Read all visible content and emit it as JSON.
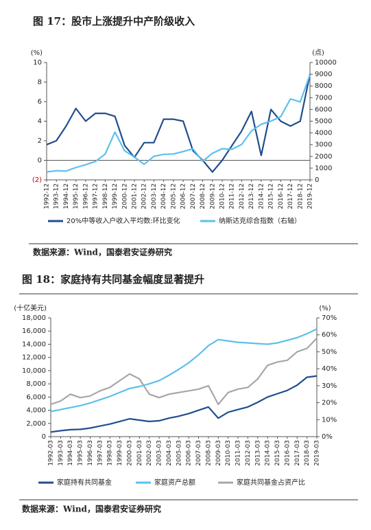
{
  "chart_data": [
    {
      "type": "line",
      "title": "图 17：股市上涨提升中产阶级收入",
      "source": "数据来源：Wind，国泰君安证券研究",
      "y_label": "(%)",
      "y2_label": "(点)",
      "categories": [
        "1992-12",
        "1993-12",
        "1994-12",
        "1995-12",
        "1996-12",
        "1997-12",
        "1998-12",
        "1999-12",
        "2000-12",
        "2001-12",
        "2002-12",
        "2003-12",
        "2004-12",
        "2005-12",
        "2006-12",
        "2007-12",
        "2008-12",
        "2009-12",
        "2010-12",
        "2011-12",
        "2012-12",
        "2013-12",
        "2014-12",
        "2015-12",
        "2016-12",
        "2017-12",
        "2018-12",
        "2019-12"
      ],
      "ylim": [
        -2,
        10
      ],
      "yticks": [
        {
          "value": -2,
          "label": "(2)"
        },
        0,
        2,
        4,
        6,
        8,
        10
      ],
      "y2lim": [
        0,
        10000
      ],
      "y2ticks": [
        0,
        1000,
        2000,
        3000,
        4000,
        5000,
        6000,
        7000,
        8000,
        9000,
        10000
      ],
      "series": [
        {
          "name": "20%中等收入户收入平均数:环比变化",
          "color": "#1f4e8c",
          "values": [
            1.6,
            2.0,
            3.5,
            5.3,
            4.0,
            4.8,
            4.8,
            4.5,
            1.5,
            0.3,
            1.8,
            1.8,
            4.2,
            4.2,
            4.0,
            1.0,
            0.0,
            -1.2,
            0.0,
            1.5,
            3.0,
            5.0,
            0.5,
            5.2,
            4.0,
            3.5,
            4.0,
            8.8
          ]
        },
        {
          "name": "纳斯达克综合指数（右轴）",
          "color": "#5bc0eb",
          "axis": "y2",
          "values": [
            676,
            777,
            752,
            1052,
            1291,
            1570,
            2193,
            4069,
            2471,
            1950,
            1336,
            2003,
            2175,
            2205,
            2415,
            2652,
            1577,
            2269,
            2653,
            2605,
            3020,
            4177,
            4736,
            5007,
            5383,
            6903,
            6635,
            8973
          ]
        }
      ]
    },
    {
      "type": "line",
      "title": "图 18：家庭持有共同基金幅度显著提升",
      "source": "数据来源：Wind，国泰君安证券研究",
      "y_label": "(十亿美元)",
      "y2_label": "(%)",
      "categories": [
        "1992-03",
        "1993-03",
        "1994-03",
        "1995-03",
        "1996-03",
        "1997-03",
        "1998-03",
        "1999-03",
        "2000-03",
        "2001-03",
        "2002-03",
        "2003-03",
        "2004-03",
        "2005-03",
        "2006-03",
        "2007-03",
        "2008-03",
        "2009-03",
        "2010-03",
        "2011-03",
        "2012-03",
        "2013-03",
        "2014-03",
        "2015-03",
        "2016-03",
        "2017-03",
        "2018-03",
        "2019-03"
      ],
      "ylim": [
        0,
        18000
      ],
      "yticks": [
        0,
        {
          "value": 2000,
          "label": "2,000"
        },
        {
          "value": 4000,
          "label": "4,000"
        },
        {
          "value": 6000,
          "label": "6,000"
        },
        {
          "value": 8000,
          "label": "8,000"
        },
        {
          "value": 10000,
          "label": "10,000"
        },
        {
          "value": 12000,
          "label": "12,000"
        },
        {
          "value": 14000,
          "label": "14,000"
        },
        {
          "value": 16000,
          "label": "16,000"
        },
        {
          "value": 18000,
          "label": "18,000"
        }
      ],
      "y2lim": [
        0,
        70
      ],
      "y2ticks": [
        {
          "value": 0,
          "label": "0%"
        },
        {
          "value": 10,
          "label": "10%"
        },
        {
          "value": 20,
          "label": "20%"
        },
        {
          "value": 30,
          "label": "30%"
        },
        {
          "value": 40,
          "label": "40%"
        },
        {
          "value": 50,
          "label": "50%"
        },
        {
          "value": 60,
          "label": "60%"
        },
        {
          "value": 70,
          "label": "70%"
        }
      ],
      "series": [
        {
          "name": "家庭持有共同基金",
          "color": "#1f4e8c",
          "values": [
            700,
            900,
            1050,
            1100,
            1300,
            1600,
            1900,
            2300,
            2700,
            2500,
            2300,
            2400,
            2800,
            3100,
            3500,
            4000,
            4500,
            2800,
            3700,
            4100,
            4500,
            5200,
            6000,
            6500,
            7000,
            7800,
            9000,
            9200
          ]
        },
        {
          "name": "家庭资产总额",
          "color": "#5bc0eb",
          "values": [
            3800,
            4100,
            4400,
            4700,
            5100,
            5600,
            6100,
            6700,
            7300,
            7600,
            8000,
            8500,
            9300,
            10200,
            11200,
            12400,
            13800,
            14700,
            14500,
            14300,
            14200,
            14100,
            14000,
            14200,
            14600,
            15000,
            15600,
            16300
          ]
        },
        {
          "name": "家庭共同基金占资产比",
          "color": "#a6a6a6",
          "axis": "y2",
          "values": [
            19,
            21,
            25,
            23,
            24,
            27,
            29,
            33,
            37,
            34,
            25,
            23,
            25,
            26,
            27,
            28,
            30,
            19,
            26,
            28,
            29,
            34,
            42,
            44,
            45,
            50,
            52,
            58
          ]
        }
      ]
    }
  ]
}
